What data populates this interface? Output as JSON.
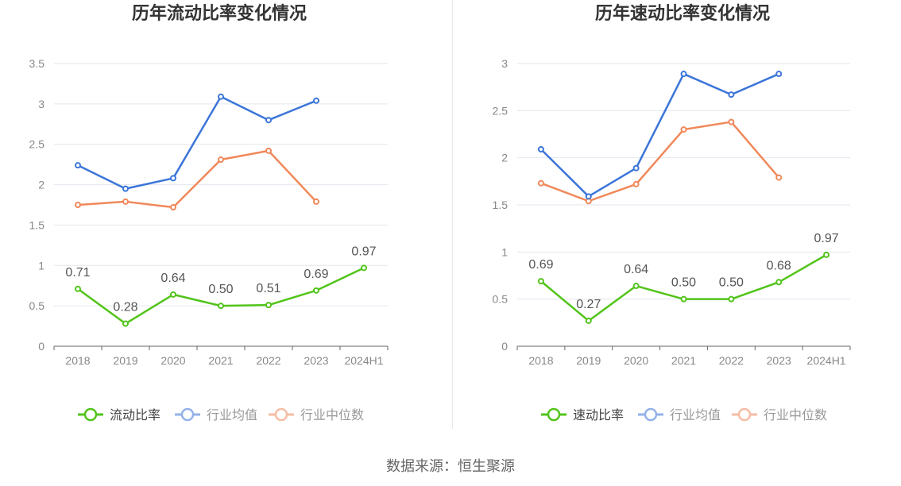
{
  "source_text": "数据来源：恒生聚源",
  "chart_data": [
    {
      "type": "line",
      "title": "历年流动比率变化情况",
      "categories": [
        "2018",
        "2019",
        "2020",
        "2021",
        "2022",
        "2023",
        "2024H1"
      ],
      "ylim": [
        0,
        3.5
      ],
      "yticks": [
        0,
        0.5,
        1,
        1.5,
        2,
        2.5,
        3,
        3.5
      ],
      "grid": true,
      "legend_position": "bottom",
      "series": [
        {
          "name": "流动比率",
          "color": "#52c41a",
          "labels": true,
          "values": [
            0.71,
            0.28,
            0.64,
            0.5,
            0.51,
            0.69,
            0.97
          ]
        },
        {
          "name": "行业均值",
          "color": "#3b75d9",
          "labels": false,
          "values": [
            2.24,
            1.95,
            2.08,
            3.09,
            2.8,
            3.04,
            null
          ]
        },
        {
          "name": "行业中位数",
          "color": "#f0885a",
          "labels": false,
          "values": [
            1.75,
            1.79,
            1.72,
            2.31,
            2.42,
            1.79,
            null
          ]
        }
      ]
    },
    {
      "type": "line",
      "title": "历年速动比率变化情况",
      "categories": [
        "2018",
        "2019",
        "2020",
        "2021",
        "2022",
        "2023",
        "2024H1"
      ],
      "ylim": [
        0,
        3
      ],
      "yticks": [
        0,
        0.5,
        1,
        1.5,
        2,
        2.5,
        3
      ],
      "grid": true,
      "legend_position": "bottom",
      "series": [
        {
          "name": "速动比率",
          "color": "#52c41a",
          "labels": true,
          "values": [
            0.69,
            0.27,
            0.64,
            0.5,
            0.5,
            0.68,
            0.97
          ]
        },
        {
          "name": "行业均值",
          "color": "#3b75d9",
          "labels": false,
          "values": [
            2.09,
            1.59,
            1.89,
            2.89,
            2.67,
            2.89,
            null
          ]
        },
        {
          "name": "行业中位数",
          "color": "#f0885a",
          "labels": false,
          "values": [
            1.73,
            1.54,
            1.72,
            2.3,
            2.38,
            1.79,
            null
          ]
        }
      ]
    }
  ]
}
